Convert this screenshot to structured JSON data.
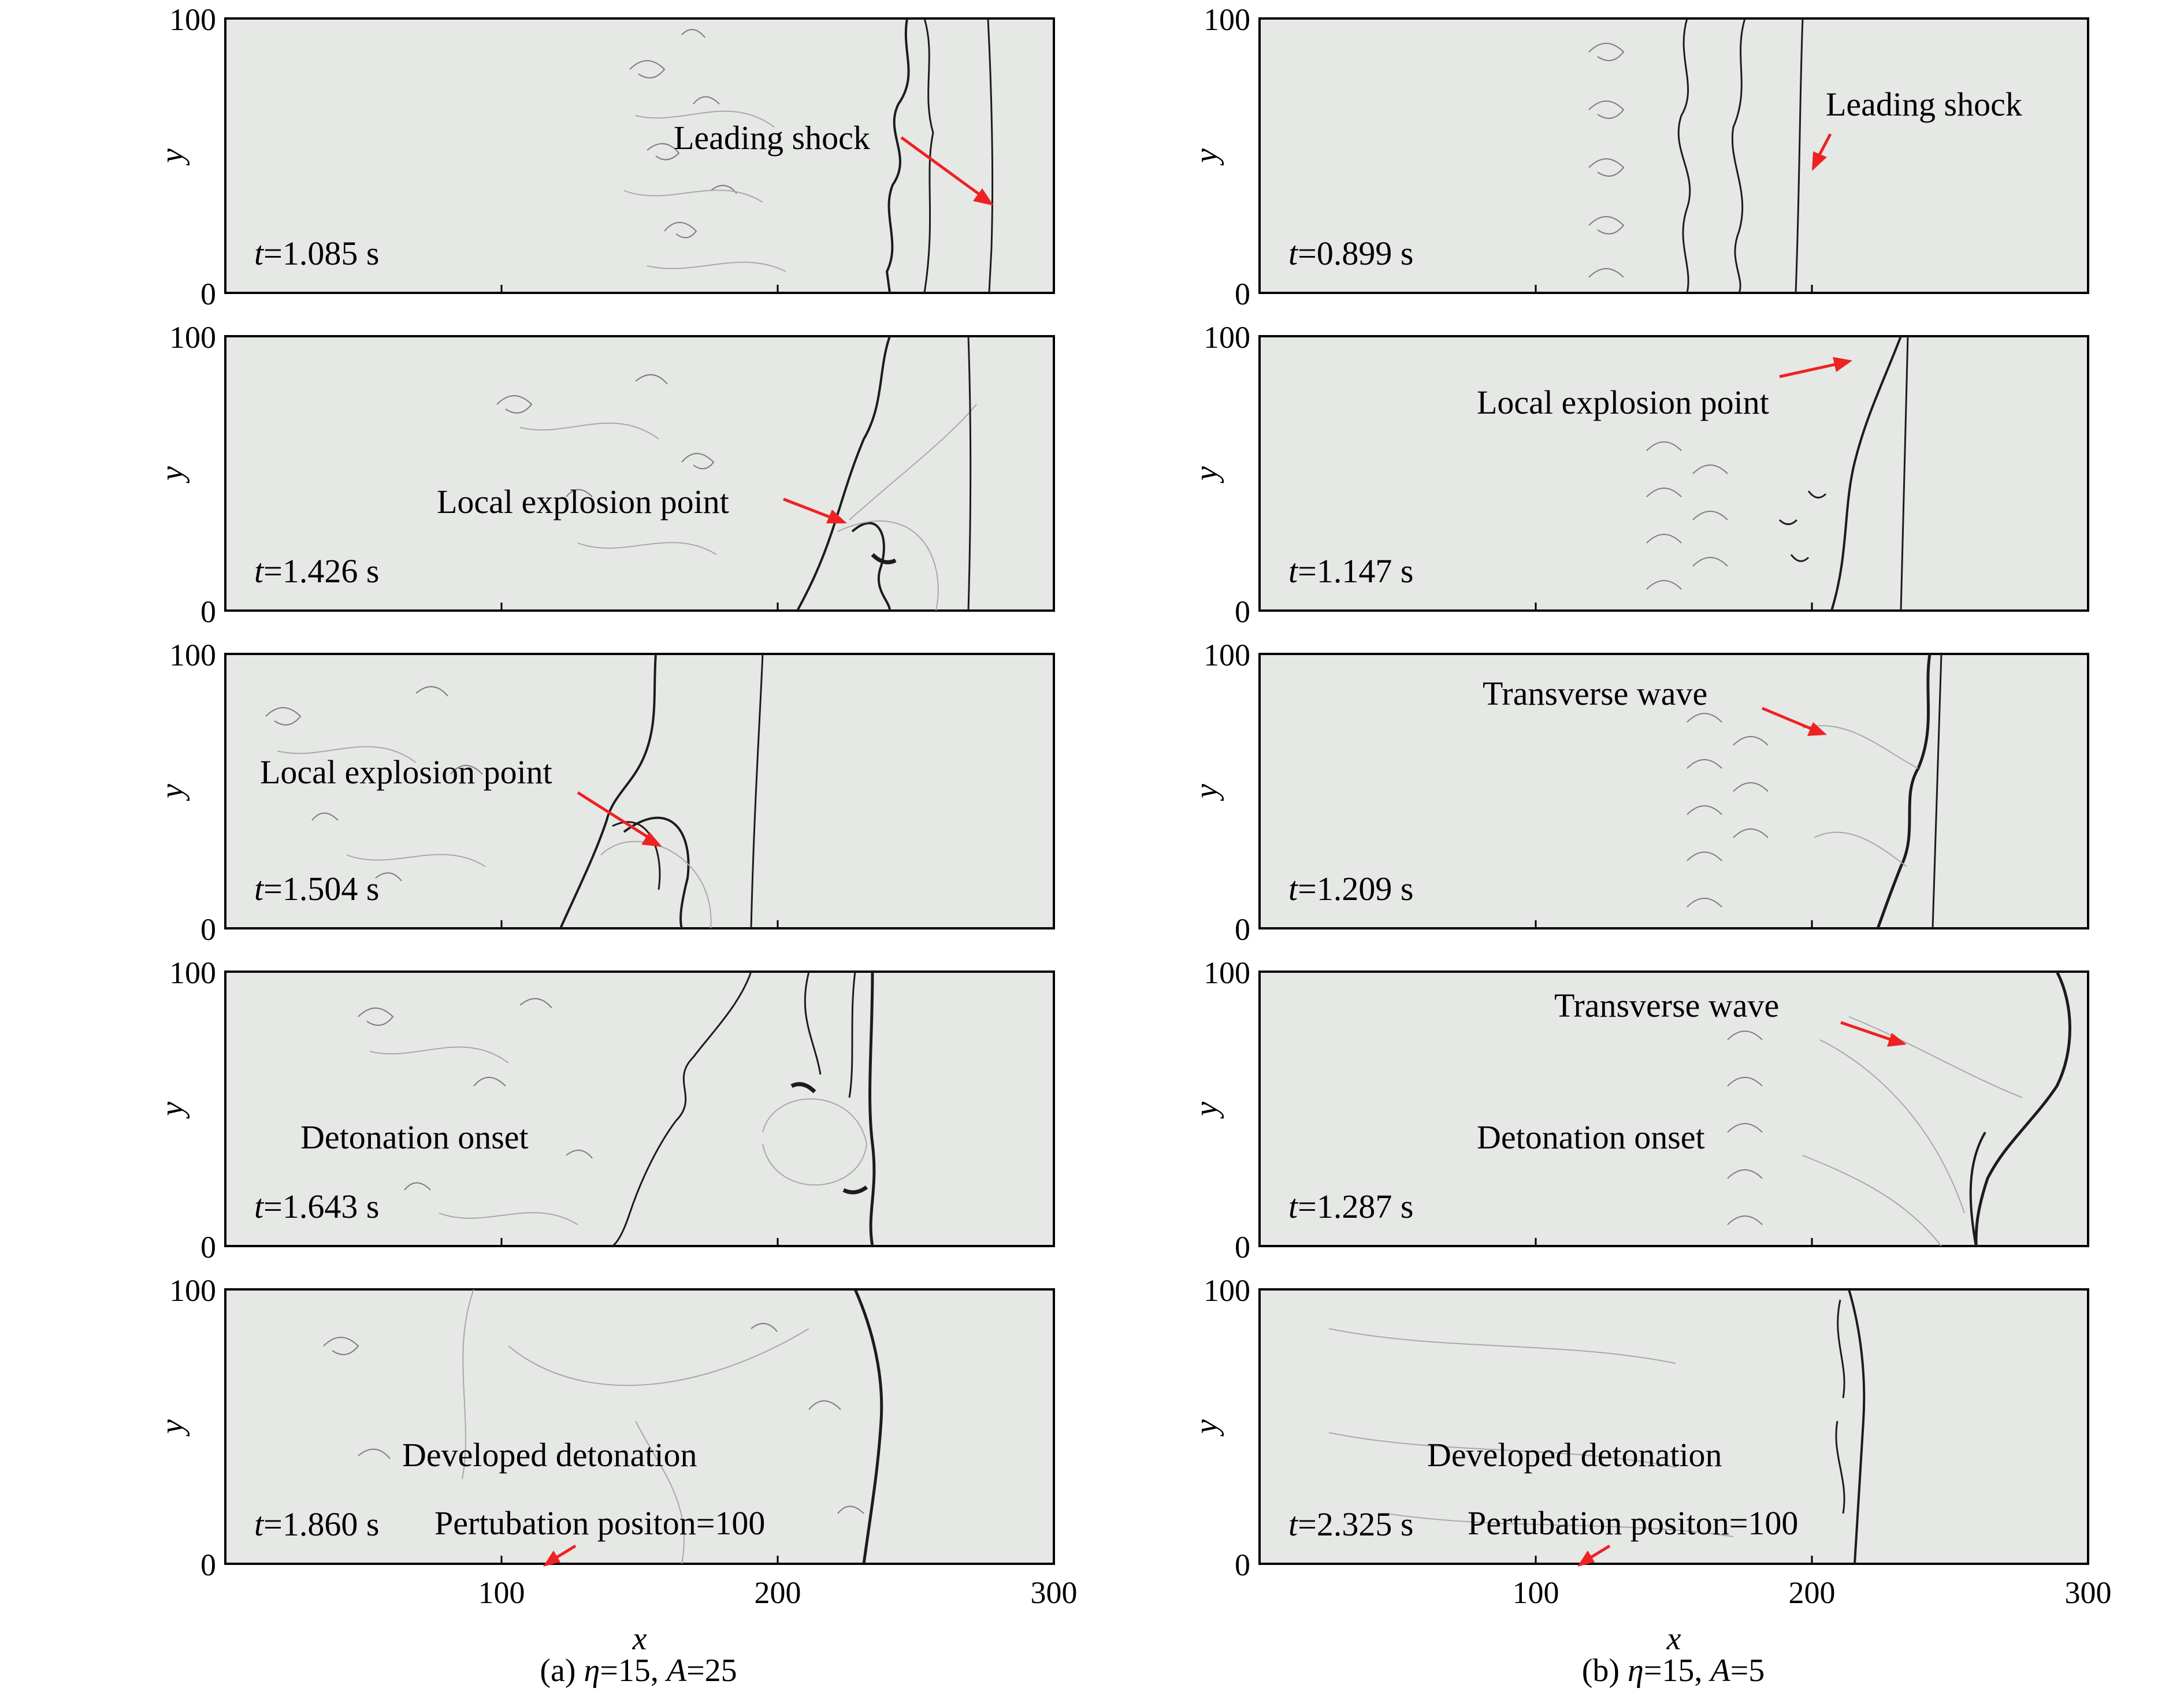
{
  "axes": {
    "x_label": "x",
    "y_label": "y",
    "x_ticks": [
      "100",
      "200",
      "300"
    ],
    "x_tick_values": [
      100,
      200,
      300
    ],
    "y_tick_labels": [
      "0",
      "100"
    ],
    "x_range": [
      0,
      300
    ],
    "y_range": [
      0,
      100
    ]
  },
  "columns": [
    {
      "caption_prefix": "(a) ",
      "caption_eta": "η",
      "caption_eta_value": "=15, ",
      "caption_A": "A",
      "caption_A_value": "=25",
      "panels": [
        {
          "time_var": "t",
          "time_value": "=1.085 s",
          "label": "Leading shock",
          "front_x": 280
        },
        {
          "time_var": "t",
          "time_value": "=1.426 s",
          "label": "Local explosion point",
          "front_x": 270
        },
        {
          "time_var": "t",
          "time_value": "=1.504 s",
          "label": "Local explosion point",
          "front_x": 192
        },
        {
          "time_var": "t",
          "time_value": "=1.643 s",
          "label": "Detonation onset",
          "front_x": 236
        },
        {
          "time_var": "t",
          "time_value": "=1.860 s",
          "label": "Developed detonation",
          "label2": "Pertubation positon=100",
          "front_x": 238
        }
      ]
    },
    {
      "caption_prefix": "(b) ",
      "caption_eta": "η",
      "caption_eta_value": "=15, ",
      "caption_A": "A",
      "caption_A_value": "=5",
      "panels": [
        {
          "time_var": "t",
          "time_value": "=0.899 s",
          "label": "Leading shock",
          "front_x": 196
        },
        {
          "time_var": "t",
          "time_value": "=1.147 s",
          "label": "Local explosion point",
          "front_x": 232
        },
        {
          "time_var": "t",
          "time_value": "=1.209 s",
          "label": "Transverse wave",
          "front_x": 243
        },
        {
          "time_var": "t",
          "time_value": "=1.287 s",
          "label": "Transverse wave",
          "label2": "Detonation onset",
          "front_x": 290
        },
        {
          "time_var": "t",
          "time_value": "=2.325 s",
          "label": "Developed detonation",
          "label2": "Pertubation positon=100",
          "front_x": 220
        }
      ]
    }
  ],
  "colors": {
    "arrow": "#ee2222",
    "panel_background": "#e6e8e6",
    "feature": "#1c1c1c"
  }
}
